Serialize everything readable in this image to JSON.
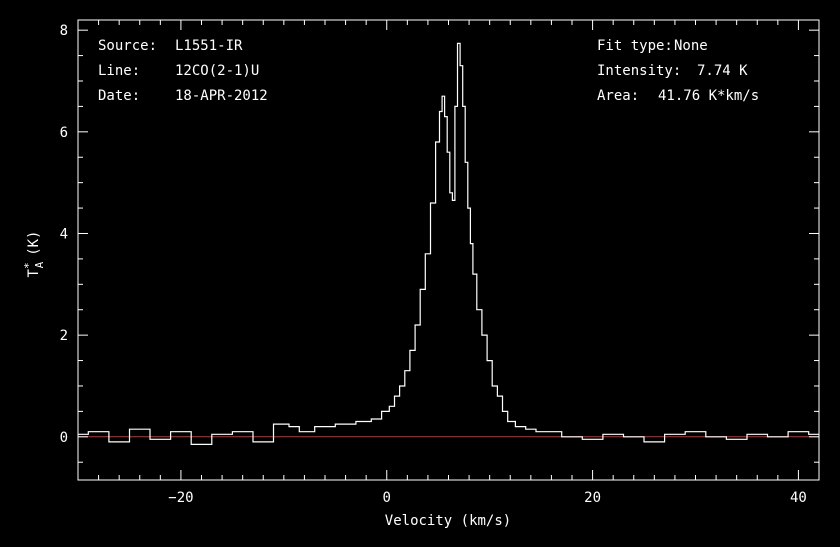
{
  "info": {
    "source_label": "Source:",
    "source_value": "L1551-IR",
    "line_label": "Line:",
    "line_value": "12CO(2-1)U",
    "date_label": "Date:",
    "date_value": "18-APR-2012",
    "fit_label": "Fit type:",
    "fit_value": "None",
    "intensity_label": "Intensity:",
    "intensity_value": "7.74 K",
    "area_label": "Area:",
    "area_value": "41.76 K*km/s"
  },
  "chart_data": {
    "type": "line",
    "xlabel": "Velocity (km/s)",
    "ylabel_main": "T",
    "ylabel_sup": "*",
    "ylabel_sub": "A",
    "ylabel_unit": "(K)",
    "xlim": [
      -30,
      42
    ],
    "ylim": [
      -0.85,
      8.2
    ],
    "xticks": [
      -20,
      0,
      20,
      40
    ],
    "xtick_labels": [
      "−20",
      "0",
      "20",
      "40"
    ],
    "yticks": [
      0,
      2,
      4,
      6,
      8
    ],
    "ytick_labels": [
      "0",
      "2",
      "4",
      "6",
      "8"
    ],
    "baseline": 0,
    "colors": {
      "spectrum": "#ffffff",
      "baseline": "#c83232",
      "axes": "#ffffff"
    },
    "series": [
      {
        "step": true,
        "x": [
          -30,
          -28,
          -26,
          -24,
          -22,
          -20,
          -18,
          -16,
          -14,
          -12,
          -10,
          -9,
          -8,
          -6,
          -4,
          -2,
          -1,
          0,
          0.5,
          1,
          1.5,
          2,
          2.5,
          3,
          3.5,
          4,
          4.5,
          5,
          5.25,
          5.5,
          5.75,
          6,
          6.25,
          6.5,
          6.75,
          7,
          7.25,
          7.5,
          7.75,
          8,
          8.25,
          8.5,
          9,
          9.5,
          10,
          10.5,
          11,
          11.5,
          12,
          13,
          14,
          15,
          16,
          18,
          20,
          22,
          24,
          26,
          28,
          30,
          32,
          34,
          36,
          38,
          40,
          42
        ],
        "values": [
          0.05,
          0.1,
          -0.1,
          0.15,
          -0.05,
          0.1,
          -0.15,
          0.05,
          0.1,
          -0.1,
          0.25,
          0.2,
          0.1,
          0.2,
          0.25,
          0.3,
          0.35,
          0.5,
          0.6,
          0.8,
          1.0,
          1.3,
          1.7,
          2.2,
          2.9,
          3.6,
          4.6,
          5.8,
          6.4,
          6.7,
          6.3,
          5.6,
          4.8,
          4.65,
          6.5,
          7.74,
          7.3,
          6.5,
          5.4,
          4.5,
          3.8,
          3.2,
          2.5,
          2.0,
          1.5,
          1.0,
          0.8,
          0.5,
          0.3,
          0.2,
          0.15,
          0.1,
          0.1,
          0.0,
          -0.05,
          0.05,
          0.0,
          -0.1,
          0.05,
          0.1,
          0.0,
          -0.05,
          0.05,
          0.0,
          0.1,
          0.05
        ]
      }
    ]
  }
}
